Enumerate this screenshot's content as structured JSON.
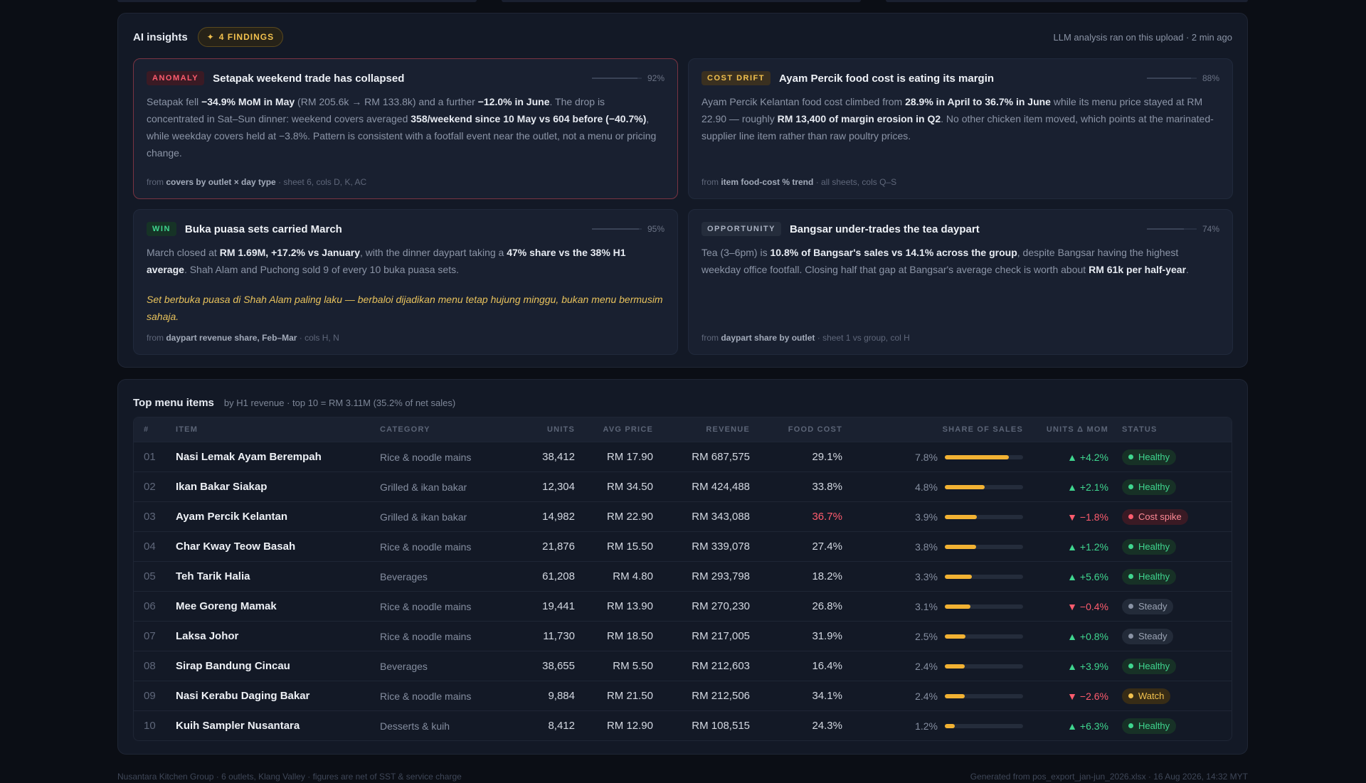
{
  "insights": {
    "title": "AI insights",
    "findings_pill": "4 FINDINGS",
    "meta": "LLM analysis ran on this upload · 2 min ago",
    "cards": [
      {
        "tag": "ANOMALY",
        "title": "Setapak weekend trade has collapsed",
        "confidence": "92%",
        "confidence_value": 0.92,
        "body_html": "Setapak fell <b>−34.9% MoM in May</b> (RM 205.6k → RM 133.8k) and a further <b>−12.0% in June</b>. The drop is concentrated in Sat–Sun dinner: weekend covers averaged <b>358/weekend since 10 May vs 604 before (−40.7%)</b>, while weekday covers held at −3.8%. Pattern is consistent with a footfall event near the outlet, not a menu or pricing change.",
        "quote": "",
        "source_prefix": "from",
        "source_name": "covers by outlet × day type",
        "source_detail": "· sheet 6, cols D, K, AC"
      },
      {
        "tag": "COST DRIFT",
        "title": "Ayam Percik food cost is eating its margin",
        "confidence": "88%",
        "confidence_value": 0.88,
        "body_html": "Ayam Percik Kelantan food cost climbed from <b>28.9% in April to 36.7% in June</b> while its menu price stayed at RM 22.90 — roughly <b>RM 13,400 of margin erosion in Q2</b>. No other chicken item moved, which points at the marinated-supplier line item rather than raw poultry prices.",
        "quote": "",
        "source_prefix": "from",
        "source_name": "item food-cost % trend",
        "source_detail": "· all sheets, cols Q–S"
      },
      {
        "tag": "WIN",
        "title": "Buka puasa sets carried March",
        "confidence": "95%",
        "confidence_value": 0.95,
        "body_html": "March closed at <b>RM 1.69M, +17.2% vs January</b>, with the dinner daypart taking a <b>47% share vs the 38% H1 average</b>. Shah Alam and Puchong sold 9 of every 10 buka puasa sets.",
        "quote": "Set berbuka puasa di Shah Alam paling laku — berbaloi dijadikan menu tetap hujung minggu, bukan menu bermusim sahaja.",
        "source_prefix": "from",
        "source_name": "daypart revenue share, Feb–Mar",
        "source_detail": "· cols H, N"
      },
      {
        "tag": "OPPORTUNITY",
        "title": "Bangsar under-trades the tea daypart",
        "confidence": "74%",
        "confidence_value": 0.74,
        "body_html": "Tea (3–6pm) is <b>10.8% of Bangsar's sales vs 14.1% across the group</b>, despite Bangsar having the highest weekday office footfall. Closing half that gap at Bangsar's average check is worth about <b>RM 61k per half-year</b>.",
        "quote": "",
        "source_prefix": "from",
        "source_name": "daypart share by outlet",
        "source_detail": "· sheet 1 vs group, col H"
      }
    ]
  },
  "top_items": {
    "title": "Top menu items",
    "subtitle": "by H1 revenue · top 10 = RM 3.11M (35.2% of net sales)",
    "columns": {
      "idx": "#",
      "item": "ITEM",
      "category": "CATEGORY",
      "units": "UNITS",
      "avg_price": "AVG PRICE",
      "revenue": "REVENUE",
      "food_cost": "FOOD COST",
      "share": "SHARE OF SALES",
      "mom": "UNITS Δ MOM",
      "status": "STATUS"
    },
    "rows": [
      {
        "idx": "01",
        "item": "Nasi Lemak Ayam Berempah",
        "category": "Rice & noodle mains",
        "units": "38,412",
        "avg_price": "RM 17.90",
        "revenue": "RM 687,575",
        "food_cost": "29.1%",
        "share": "7.8%",
        "share_value": 7.8,
        "mom": "▲ +4.2%",
        "mom_dir": "up",
        "status": "Healthy",
        "status_kind": "healthy",
        "fc_alert": false
      },
      {
        "idx": "02",
        "item": "Ikan Bakar Siakap",
        "category": "Grilled & ikan bakar",
        "units": "12,304",
        "avg_price": "RM 34.50",
        "revenue": "RM 424,488",
        "food_cost": "33.8%",
        "share": "4.8%",
        "share_value": 4.8,
        "mom": "▲ +2.1%",
        "mom_dir": "up",
        "status": "Healthy",
        "status_kind": "healthy",
        "fc_alert": false
      },
      {
        "idx": "03",
        "item": "Ayam Percik Kelantan",
        "category": "Grilled & ikan bakar",
        "units": "14,982",
        "avg_price": "RM 22.90",
        "revenue": "RM 343,088",
        "food_cost": "36.7%",
        "share": "3.9%",
        "share_value": 3.9,
        "mom": "▼ −1.8%",
        "mom_dir": "down",
        "status": "Cost spike",
        "status_kind": "costspike",
        "fc_alert": true
      },
      {
        "idx": "04",
        "item": "Char Kway Teow Basah",
        "category": "Rice & noodle mains",
        "units": "21,876",
        "avg_price": "RM 15.50",
        "revenue": "RM 339,078",
        "food_cost": "27.4%",
        "share": "3.8%",
        "share_value": 3.8,
        "mom": "▲ +1.2%",
        "mom_dir": "up",
        "status": "Healthy",
        "status_kind": "healthy",
        "fc_alert": false
      },
      {
        "idx": "05",
        "item": "Teh Tarik Halia",
        "category": "Beverages",
        "units": "61,208",
        "avg_price": "RM 4.80",
        "revenue": "RM 293,798",
        "food_cost": "18.2%",
        "share": "3.3%",
        "share_value": 3.3,
        "mom": "▲ +5.6%",
        "mom_dir": "up",
        "status": "Healthy",
        "status_kind": "healthy",
        "fc_alert": false
      },
      {
        "idx": "06",
        "item": "Mee Goreng Mamak",
        "category": "Rice & noodle mains",
        "units": "19,441",
        "avg_price": "RM 13.90",
        "revenue": "RM 270,230",
        "food_cost": "26.8%",
        "share": "3.1%",
        "share_value": 3.1,
        "mom": "▼ −0.4%",
        "mom_dir": "down",
        "status": "Steady",
        "status_kind": "steady",
        "fc_alert": false
      },
      {
        "idx": "07",
        "item": "Laksa Johor",
        "category": "Rice & noodle mains",
        "units": "11,730",
        "avg_price": "RM 18.50",
        "revenue": "RM 217,005",
        "food_cost": "31.9%",
        "share": "2.5%",
        "share_value": 2.5,
        "mom": "▲ +0.8%",
        "mom_dir": "up",
        "status": "Steady",
        "status_kind": "steady",
        "fc_alert": false
      },
      {
        "idx": "08",
        "item": "Sirap Bandung Cincau",
        "category": "Beverages",
        "units": "38,655",
        "avg_price": "RM 5.50",
        "revenue": "RM 212,603",
        "food_cost": "16.4%",
        "share": "2.4%",
        "share_value": 2.4,
        "mom": "▲ +3.9%",
        "mom_dir": "up",
        "status": "Healthy",
        "status_kind": "healthy",
        "fc_alert": false
      },
      {
        "idx": "09",
        "item": "Nasi Kerabu Daging Bakar",
        "category": "Rice & noodle mains",
        "units": "9,884",
        "avg_price": "RM 21.50",
        "revenue": "RM 212,506",
        "food_cost": "34.1%",
        "share": "2.4%",
        "share_value": 2.4,
        "mom": "▼ −2.6%",
        "mom_dir": "down",
        "status": "Watch",
        "status_kind": "watch",
        "fc_alert": false
      },
      {
        "idx": "10",
        "item": "Kuih Sampler Nusantara",
        "category": "Desserts & kuih",
        "units": "8,412",
        "avg_price": "RM 12.90",
        "revenue": "RM 108,515",
        "food_cost": "24.3%",
        "share": "1.2%",
        "share_value": 1.2,
        "mom": "▲ +6.3%",
        "mom_dir": "up",
        "status": "Healthy",
        "status_kind": "healthy",
        "fc_alert": false
      }
    ]
  },
  "footer": {
    "left": "Nusantara Kitchen Group · 6 outlets, Klang Valley · figures are net of SST & service charge",
    "right": "Generated from pos_export_jan-jun_2026.xlsx · 16 Aug 2026, 14:32 MYT"
  },
  "colors": {
    "accent": "#f2b233",
    "positive": "#3fd68f",
    "negative": "#ff5c6e",
    "background": "#0b0e15",
    "panel": "#131926"
  }
}
